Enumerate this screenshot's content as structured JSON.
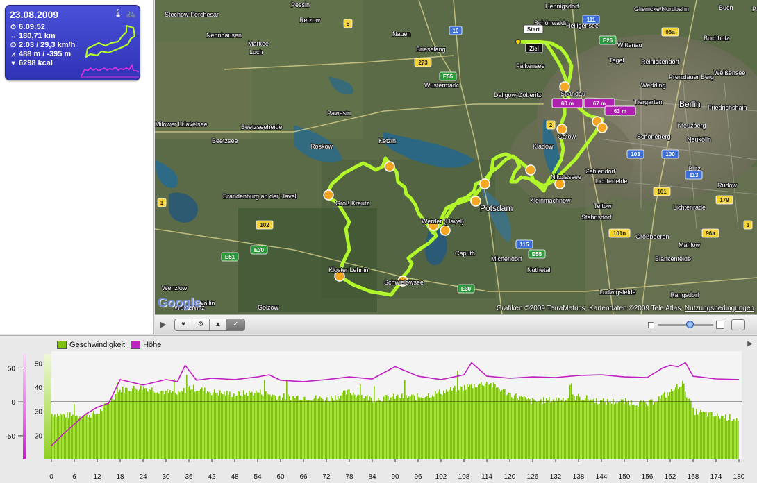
{
  "summary": {
    "date": "23.08.2009",
    "duration": "6:09:52",
    "distance": "180,71 km",
    "avg": "2:03 / 29,3 km/h",
    "elevation": "488 m / -395 m",
    "calories": "6298 kcal",
    "icons": [
      "stopwatch-icon",
      "distance-arrows-icon",
      "average-icon",
      "elevation-icon",
      "heart-icon",
      "thermometer-icon",
      "bicycle-icon"
    ]
  },
  "map": {
    "places": [
      {
        "name": "Hennigsdorf"
      },
      {
        "name": "Schönwalde"
      },
      {
        "name": "Heiligensee"
      },
      {
        "name": "Glienicke/Nordbahn"
      },
      {
        "name": "Buch"
      },
      {
        "name": "Pankeital"
      },
      {
        "name": "Stechow-Ferchesar"
      },
      {
        "name": "Pessin"
      },
      {
        "name": "Retzow"
      },
      {
        "name": "Nauen"
      },
      {
        "name": "Brieselang"
      },
      {
        "name": "Falkensee"
      },
      {
        "name": "Wittenau"
      },
      {
        "name": "Buchholz"
      },
      {
        "name": "Nennhausen"
      },
      {
        "name": "Markee"
      },
      {
        "name": "Luch"
      },
      {
        "name": "Tegel"
      },
      {
        "name": "Reinickendorf"
      },
      {
        "name": "Prenzlauer Berg"
      },
      {
        "name": "Weißensee"
      },
      {
        "name": "Wustermark"
      },
      {
        "name": "Dallgow-Döberitz"
      },
      {
        "name": "Spandau"
      },
      {
        "name": "Wedding"
      },
      {
        "name": "Tiergarten"
      },
      {
        "name": "Berlin"
      },
      {
        "name": "Friedrichshain"
      },
      {
        "name": "Pawesin"
      },
      {
        "name": "Milower Land"
      },
      {
        "name": "Havelsee"
      },
      {
        "name": "Beetzseeheide"
      },
      {
        "name": "Kreuzberg"
      },
      {
        "name": "Neukölln"
      },
      {
        "name": "Schöneberg"
      },
      {
        "name": "Beetzsee"
      },
      {
        "name": "Roskow"
      },
      {
        "name": "Ketzin"
      },
      {
        "name": "Gatow"
      },
      {
        "name": "Kladow"
      },
      {
        "name": "Zehlendorf"
      },
      {
        "name": "Lichterfelde"
      },
      {
        "name": "Britz"
      },
      {
        "name": "Rudow"
      },
      {
        "name": "Nikolassee"
      },
      {
        "name": "Brandenburg an der Havel"
      },
      {
        "name": "Groß Kreutz"
      },
      {
        "name": "Potsdam"
      },
      {
        "name": "Kleinmachnow"
      },
      {
        "name": "Teltow"
      },
      {
        "name": "Lichtenrade"
      },
      {
        "name": "Werder (Havel)"
      },
      {
        "name": "Stahnsdorf"
      },
      {
        "name": "Kloster Lehnin"
      },
      {
        "name": "Caputh"
      },
      {
        "name": "Großbeeren"
      },
      {
        "name": "Mahlow"
      },
      {
        "name": "Blankenfelde"
      },
      {
        "name": "Wenzlow"
      },
      {
        "name": "Michendorf"
      },
      {
        "name": "Nuthetal"
      },
      {
        "name": "Ludwigsfelde"
      },
      {
        "name": "Rangsdorf"
      },
      {
        "name": "Wollin"
      },
      {
        "name": "Golzow"
      },
      {
        "name": "Schwielowsee"
      },
      {
        "name": "Wusterwitz"
      }
    ],
    "start_label": "Start",
    "finish_label": "Ziel",
    "peak_labels": [
      "60 m",
      "67 m",
      "63 m"
    ],
    "road_numbers": [
      "111",
      "E26",
      "96a",
      "5",
      "10",
      "E55",
      "273",
      "2",
      "100",
      "103",
      "101",
      "113",
      "179",
      "1",
      "102",
      "E30",
      "E51",
      "115",
      "E55",
      "E30",
      "101n",
      "96a",
      "1"
    ],
    "credit": "Grafiken ©2009 TerraMetrics, Kartendaten ©2009 Tele Atlas",
    "terms": "Nutzungsbedingungen",
    "google_logo": "Google",
    "route_color": "#b6ff2a"
  },
  "toolbar": {
    "play": "▶",
    "segments": [
      "♥",
      "⚙",
      "▲",
      "✓"
    ]
  },
  "chart": {
    "legend": [
      {
        "label": "Geschwindigkeit",
        "color": "#7fbf10"
      },
      {
        "label": "Höhe",
        "color": "#c020c0"
      }
    ],
    "left_ticks": [
      "50",
      "0",
      "-50"
    ],
    "right_ticks": [
      "50",
      "40",
      "30",
      "20"
    ],
    "x_ticks": [
      "0",
      "6",
      "12",
      "18",
      "24",
      "30",
      "36",
      "42",
      "48",
      "54",
      "60",
      "66",
      "72",
      "78",
      "84",
      "90",
      "96",
      "102",
      "108",
      "114",
      "120",
      "126",
      "132",
      "138",
      "144",
      "150",
      "156",
      "162",
      "168",
      "174",
      "180"
    ]
  },
  "chart_data": {
    "type": "bar",
    "xlabel": "",
    "xlim": [
      0,
      180
    ],
    "speed_ylim": [
      10,
      55
    ],
    "elevation_ylim": [
      -85,
      75
    ],
    "series": [
      {
        "name": "Geschwindigkeit",
        "x": [
          0,
          6,
          12,
          15,
          18,
          24,
          30,
          33,
          36,
          42,
          48,
          54,
          60,
          66,
          72,
          78,
          84,
          90,
          96,
          102,
          108,
          111,
          114,
          120,
          126,
          132,
          138,
          144,
          150,
          156,
          162,
          165,
          168,
          174,
          180
        ],
        "values": [
          29,
          28,
          29,
          34,
          39,
          40,
          38,
          37,
          40,
          38,
          37,
          38,
          36,
          36,
          35,
          38,
          35,
          36,
          36,
          38,
          40,
          41,
          42,
          37,
          34,
          35,
          36,
          34,
          34,
          33,
          38,
          42,
          30,
          28,
          27
        ]
      },
      {
        "name": "Höhe",
        "x": [
          0,
          3,
          6,
          9,
          12,
          15,
          18,
          24,
          30,
          33,
          35,
          38,
          42,
          48,
          54,
          57,
          60,
          66,
          72,
          78,
          84,
          90,
          96,
          102,
          108,
          110,
          114,
          120,
          126,
          132,
          138,
          144,
          150,
          156,
          160,
          162,
          164,
          166,
          168,
          174,
          180
        ],
        "values": [
          -65,
          -48,
          -33,
          -18,
          -8,
          -2,
          33,
          25,
          33,
          30,
          54,
          32,
          35,
          33,
          37,
          40,
          32,
          30,
          33,
          37,
          34,
          52,
          38,
          33,
          40,
          58,
          38,
          35,
          37,
          36,
          39,
          40,
          37,
          36,
          50,
          54,
          52,
          58,
          38,
          34,
          33
        ]
      }
    ]
  }
}
